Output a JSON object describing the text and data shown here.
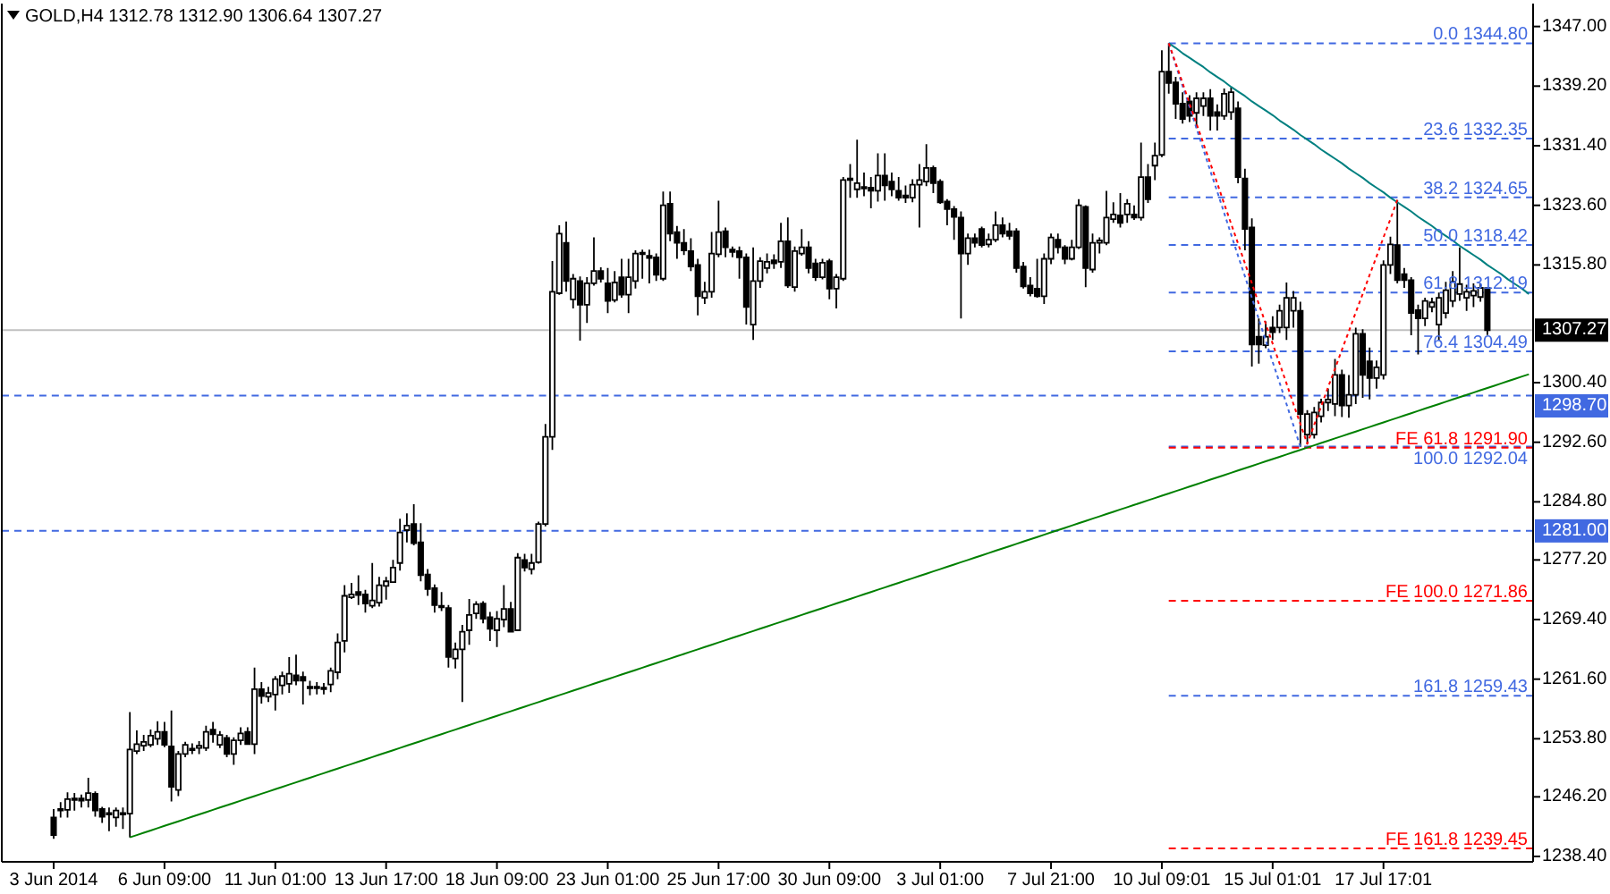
{
  "chart_data": {
    "type": "candlestick",
    "title": "GOLD,H4 1312.78 1312.90 1306.64 1307.27",
    "categories": [
      "3 Jun 2014",
      null,
      null,
      null,
      null,
      null,
      null,
      null,
      null,
      null,
      null,
      null,
      null,
      null,
      null,
      null,
      "6 Jun 09:00",
      null,
      null,
      null,
      null,
      null,
      null,
      null,
      null,
      null,
      null,
      null,
      null,
      null,
      null,
      null,
      "11 Jun 01:00",
      null,
      null,
      null,
      null,
      null,
      null,
      null,
      null,
      null,
      null,
      null,
      null,
      null,
      null,
      null,
      "13 Jun 17:00",
      null,
      null,
      null,
      null,
      null,
      null,
      null,
      null,
      null,
      null,
      null,
      null,
      null,
      null,
      null,
      "18 Jun 09:00",
      null,
      null,
      null,
      null,
      null,
      null,
      null,
      null,
      null,
      null,
      null,
      null,
      null,
      null,
      null,
      "23 Jun 01:00",
      null,
      null,
      null,
      null,
      null,
      null,
      null,
      null,
      null,
      null,
      null,
      null,
      null,
      null,
      null,
      "25 Jun 17:00",
      null,
      null,
      null,
      null,
      null,
      null,
      null,
      null,
      null,
      null,
      null,
      null,
      null,
      null,
      null,
      "30 Jun 09:00",
      null,
      null,
      null,
      null,
      null,
      null,
      null,
      null,
      null,
      null,
      null,
      null,
      null,
      null,
      null,
      "3 Jul 01:00",
      null,
      null,
      null,
      null,
      null,
      null,
      null,
      null,
      null,
      null,
      null,
      null,
      null,
      null,
      null,
      "7 Jul 21:00",
      null,
      null,
      null,
      null,
      null,
      null,
      null,
      null,
      null,
      null,
      null,
      null,
      null,
      null,
      null,
      "10 Jul 09:01",
      null,
      null,
      null,
      null,
      null,
      null,
      null,
      null,
      null,
      null,
      null,
      null,
      null,
      null,
      null,
      "15 Jul 01:01",
      null,
      null,
      null,
      null,
      null,
      null,
      null,
      null,
      null,
      null,
      null,
      null,
      null,
      null,
      null,
      "17 Jul 17:01",
      null,
      null,
      null,
      null,
      null,
      null,
      null,
      null,
      null,
      null,
      null,
      null,
      null,
      null,
      null,
      null,
      null,
      null,
      null,
      null,
      null
    ],
    "ohlc": [
      [
        1243.5,
        1244.6,
        1240.7,
        1241.2
      ],
      [
        1244.4,
        1245.5,
        1243.5,
        1244.6
      ],
      [
        1244.5,
        1246.8,
        1243.5,
        1245.9
      ],
      [
        1245.8,
        1246.7,
        1244.4,
        1246.0
      ],
      [
        1246.0,
        1246.5,
        1244.8,
        1245.7
      ],
      [
        1245.8,
        1248.7,
        1244.8,
        1246.7
      ],
      [
        1246.6,
        1246.9,
        1243.6,
        1244.4
      ],
      [
        1244.6,
        1244.9,
        1242.8,
        1243.6
      ],
      [
        1243.9,
        1244.8,
        1241.7,
        1244.1
      ],
      [
        1243.5,
        1244.8,
        1242.3,
        1244.4
      ],
      [
        1244.1,
        1244.8,
        1242.0,
        1243.9
      ],
      [
        1244.0,
        1257.3,
        1240.9,
        1252.4
      ],
      [
        1252.2,
        1254.9,
        1251.8,
        1253.1
      ],
      [
        1252.9,
        1254.3,
        1252.2,
        1253.4
      ],
      [
        1253.0,
        1255.0,
        1252.7,
        1254.2
      ],
      [
        1253.8,
        1256.1,
        1253.0,
        1254.7
      ],
      [
        1254.7,
        1256.0,
        1252.7,
        1253.0
      ],
      [
        1252.8,
        1257.5,
        1245.6,
        1247.5
      ],
      [
        1247.1,
        1252.2,
        1246.3,
        1251.8
      ],
      [
        1251.8,
        1253.4,
        1251.4,
        1253.0
      ],
      [
        1252.3,
        1253.2,
        1251.8,
        1252.5
      ],
      [
        1252.6,
        1253.5,
        1251.8,
        1252.9
      ],
      [
        1252.6,
        1255.5,
        1252.2,
        1254.7
      ],
      [
        1255.0,
        1256.0,
        1253.3,
        1254.4
      ],
      [
        1253.0,
        1254.8,
        1252.6,
        1254.3
      ],
      [
        1253.9,
        1254.3,
        1251.4,
        1251.8
      ],
      [
        1251.8,
        1254.0,
        1250.4,
        1253.6
      ],
      [
        1253.6,
        1255.3,
        1253.0,
        1254.5
      ],
      [
        1254.7,
        1255.3,
        1253.0,
        1253.1
      ],
      [
        1253.1,
        1263.1,
        1251.8,
        1260.3
      ],
      [
        1260.3,
        1261.2,
        1258.4,
        1259.4
      ],
      [
        1259.3,
        1260.6,
        1258.6,
        1259.8
      ],
      [
        1259.6,
        1262.0,
        1257.5,
        1261.6
      ],
      [
        1260.8,
        1262.6,
        1259.6,
        1262.0
      ],
      [
        1261.0,
        1264.5,
        1259.8,
        1262.3
      ],
      [
        1262.1,
        1264.8,
        1260.8,
        1261.4
      ],
      [
        1261.9,
        1262.6,
        1258.3,
        1261.4
      ],
      [
        1260.4,
        1261.4,
        1259.5,
        1260.6
      ],
      [
        1260.6,
        1261.2,
        1259.6,
        1260.4
      ],
      [
        1260.3,
        1261.1,
        1259.6,
        1260.5
      ],
      [
        1260.9,
        1263.1,
        1259.9,
        1262.7
      ],
      [
        1262.5,
        1267.6,
        1261.6,
        1266.4
      ],
      [
        1266.6,
        1273.9,
        1265.1,
        1272.5
      ],
      [
        1272.3,
        1274.2,
        1272.1,
        1272.7
      ],
      [
        1273.0,
        1275.2,
        1271.3,
        1272.6
      ],
      [
        1272.7,
        1273.3,
        1270.3,
        1271.5
      ],
      [
        1271.2,
        1276.8,
        1270.9,
        1271.9
      ],
      [
        1271.6,
        1275.0,
        1271.1,
        1273.9
      ],
      [
        1273.8,
        1275.0,
        1272.0,
        1274.4
      ],
      [
        1274.3,
        1277.2,
        1274.2,
        1276.2
      ],
      [
        1276.8,
        1282.6,
        1275.8,
        1280.8
      ],
      [
        1281.1,
        1283.3,
        1279.5,
        1281.7
      ],
      [
        1281.9,
        1284.5,
        1279.1,
        1279.4
      ],
      [
        1279.5,
        1282.0,
        1274.4,
        1275.2
      ],
      [
        1275.3,
        1276.0,
        1272.5,
        1273.4
      ],
      [
        1273.5,
        1274.0,
        1270.3,
        1271.3
      ],
      [
        1271.2,
        1273.0,
        1270.5,
        1271.0
      ],
      [
        1270.9,
        1271.3,
        1263.1,
        1264.5
      ],
      [
        1264.3,
        1266.4,
        1263.0,
        1265.5
      ],
      [
        1265.5,
        1268.7,
        1258.6,
        1267.8
      ],
      [
        1268.0,
        1272.1,
        1266.1,
        1270.0
      ],
      [
        1270.2,
        1271.8,
        1269.5,
        1271.4
      ],
      [
        1271.5,
        1271.8,
        1268.9,
        1269.5
      ],
      [
        1269.7,
        1270.4,
        1266.6,
        1268.2
      ],
      [
        1268.0,
        1270.5,
        1265.8,
        1269.5
      ],
      [
        1269.4,
        1273.9,
        1268.4,
        1270.8
      ],
      [
        1270.8,
        1271.7,
        1267.7,
        1267.8
      ],
      [
        1268.0,
        1278.1,
        1267.9,
        1277.5
      ],
      [
        1277.2,
        1278.0,
        1275.7,
        1276.2
      ],
      [
        1276.0,
        1278.0,
        1275.3,
        1276.8
      ],
      [
        1276.9,
        1282.2,
        1276.7,
        1281.9
      ],
      [
        1281.9,
        1295.0,
        1281.6,
        1293.3
      ],
      [
        1293.3,
        1316.3,
        1291.6,
        1312.3
      ],
      [
        1312.1,
        1321.0,
        1311.9,
        1319.9
      ],
      [
        1318.7,
        1321.5,
        1312.3,
        1313.7
      ],
      [
        1311.3,
        1314.6,
        1310.1,
        1314.0
      ],
      [
        1313.7,
        1314.3,
        1305.9,
        1310.6
      ],
      [
        1310.6,
        1314.2,
        1308.2,
        1313.4
      ],
      [
        1313.4,
        1319.4,
        1313.1,
        1315.0
      ],
      [
        1315.0,
        1315.5,
        1313.5,
        1314.0
      ],
      [
        1313.4,
        1315.4,
        1309.5,
        1311.1
      ],
      [
        1311.2,
        1315.0,
        1310.9,
        1313.5
      ],
      [
        1314.2,
        1316.6,
        1311.5,
        1311.9
      ],
      [
        1311.9,
        1316.6,
        1309.5,
        1314.2
      ],
      [
        1313.7,
        1317.7,
        1312.7,
        1317.3
      ],
      [
        1317.2,
        1317.8,
        1314.0,
        1317.4
      ],
      [
        1317.0,
        1317.8,
        1313.4,
        1316.7
      ],
      [
        1316.8,
        1317.3,
        1313.7,
        1314.5
      ],
      [
        1314.0,
        1325.4,
        1313.7,
        1323.6
      ],
      [
        1323.8,
        1325.4,
        1318.9,
        1319.9
      ],
      [
        1320.1,
        1320.9,
        1316.6,
        1318.7
      ],
      [
        1318.7,
        1320.5,
        1317.1,
        1317.7
      ],
      [
        1317.6,
        1319.3,
        1315.0,
        1315.6
      ],
      [
        1315.8,
        1316.6,
        1309.2,
        1311.7
      ],
      [
        1311.5,
        1313.6,
        1310.7,
        1312.3
      ],
      [
        1312.3,
        1320.1,
        1311.5,
        1317.3
      ],
      [
        1317.2,
        1324.2,
        1316.8,
        1320.1
      ],
      [
        1320.2,
        1320.7,
        1316.8,
        1318.1
      ],
      [
        1317.8,
        1318.2,
        1316.8,
        1317.5
      ],
      [
        1317.6,
        1318.2,
        1314.0,
        1316.8
      ],
      [
        1316.8,
        1317.3,
        1308.0,
        1310.3
      ],
      [
        1308.0,
        1318.1,
        1306.0,
        1313.7
      ],
      [
        1313.7,
        1316.8,
        1312.8,
        1316.3
      ],
      [
        1315.4,
        1317.3,
        1314.7,
        1316.2
      ],
      [
        1316.4,
        1317.2,
        1315.3,
        1316.0
      ],
      [
        1316.2,
        1321.3,
        1315.4,
        1318.9
      ],
      [
        1318.9,
        1322.0,
        1312.8,
        1313.1
      ],
      [
        1312.9,
        1318.2,
        1312.3,
        1317.6
      ],
      [
        1317.3,
        1320.5,
        1317.0,
        1318.1
      ],
      [
        1318.1,
        1318.9,
        1314.7,
        1315.4
      ],
      [
        1316.0,
        1316.6,
        1313.7,
        1314.2
      ],
      [
        1314.2,
        1316.6,
        1313.9,
        1316.1
      ],
      [
        1316.3,
        1316.6,
        1311.3,
        1312.7
      ],
      [
        1312.7,
        1314.6,
        1310.1,
        1314.2
      ],
      [
        1314.0,
        1327.3,
        1313.7,
        1326.9
      ],
      [
        1326.9,
        1329.0,
        1324.6,
        1327.1
      ],
      [
        1325.7,
        1332.2,
        1324.6,
        1326.5
      ],
      [
        1326.0,
        1327.9,
        1324.8,
        1325.8
      ],
      [
        1325.9,
        1327.3,
        1323.2,
        1325.5
      ],
      [
        1325.5,
        1330.4,
        1324.1,
        1327.5
      ],
      [
        1327.5,
        1330.4,
        1324.2,
        1326.2
      ],
      [
        1326.7,
        1327.9,
        1324.8,
        1325.7
      ],
      [
        1325.5,
        1327.3,
        1324.2,
        1324.6
      ],
      [
        1324.9,
        1326.2,
        1323.9,
        1324.6
      ],
      [
        1324.6,
        1327.0,
        1324.0,
        1326.3
      ],
      [
        1326.3,
        1329.0,
        1320.7,
        1326.9
      ],
      [
        1326.7,
        1331.6,
        1326.1,
        1328.5
      ],
      [
        1328.5,
        1328.8,
        1325.2,
        1326.5
      ],
      [
        1326.7,
        1327.0,
        1323.8,
        1324.0
      ],
      [
        1324.1,
        1324.4,
        1321.0,
        1323.1
      ],
      [
        1323.1,
        1323.5,
        1319.1,
        1322.1
      ],
      [
        1322.0,
        1322.8,
        1308.8,
        1317.3
      ],
      [
        1317.3,
        1319.9,
        1315.8,
        1319.3
      ],
      [
        1319.3,
        1319.9,
        1318.1,
        1318.7
      ],
      [
        1320.5,
        1320.8,
        1318.1,
        1318.4
      ],
      [
        1318.5,
        1319.9,
        1318.1,
        1319.1
      ],
      [
        1319.1,
        1322.8,
        1318.8,
        1321.0
      ],
      [
        1321.0,
        1322.0,
        1319.4,
        1319.9
      ],
      [
        1320.2,
        1321.3,
        1319.1,
        1319.6
      ],
      [
        1320.2,
        1320.6,
        1314.8,
        1315.4
      ],
      [
        1315.6,
        1316.2,
        1312.7,
        1313.0
      ],
      [
        1313.1,
        1314.2,
        1311.7,
        1312.1
      ],
      [
        1312.7,
        1316.6,
        1311.5,
        1311.7
      ],
      [
        1311.7,
        1317.3,
        1310.7,
        1316.6
      ],
      [
        1316.6,
        1319.9,
        1315.9,
        1319.4
      ],
      [
        1319.1,
        1319.9,
        1317.3,
        1318.1
      ],
      [
        1318.1,
        1318.4,
        1315.9,
        1316.6
      ],
      [
        1316.6,
        1319.1,
        1316.4,
        1318.1
      ],
      [
        1318.1,
        1324.4,
        1317.9,
        1323.6
      ],
      [
        1323.4,
        1323.6,
        1312.9,
        1315.4
      ],
      [
        1315.2,
        1319.9,
        1314.8,
        1318.7
      ],
      [
        1318.7,
        1319.4,
        1317.3,
        1319.0
      ],
      [
        1318.7,
        1325.5,
        1318.4,
        1322.0
      ],
      [
        1321.8,
        1324.0,
        1321.3,
        1322.4
      ],
      [
        1322.3,
        1325.2,
        1320.7,
        1321.3
      ],
      [
        1322.4,
        1324.4,
        1321.3,
        1323.8
      ],
      [
        1322.4,
        1323.6,
        1321.7,
        1322.0
      ],
      [
        1322.0,
        1331.8,
        1321.6,
        1327.3
      ],
      [
        1327.3,
        1329.0,
        1323.9,
        1324.4
      ],
      [
        1328.8,
        1331.8,
        1326.9,
        1330.1
      ],
      [
        1330.2,
        1343.9,
        1329.9,
        1341.1
      ],
      [
        1341.1,
        1344.8,
        1338.2,
        1339.6
      ],
      [
        1339.7,
        1340.4,
        1334.9,
        1336.9
      ],
      [
        1336.9,
        1338.4,
        1334.3,
        1334.9
      ],
      [
        1337.2,
        1338.0,
        1334.5,
        1335.3
      ],
      [
        1335.7,
        1338.4,
        1333.7,
        1337.6
      ],
      [
        1336.6,
        1338.4,
        1335.3,
        1337.6
      ],
      [
        1337.6,
        1338.8,
        1333.4,
        1335.3
      ],
      [
        1335.8,
        1336.8,
        1333.4,
        1335.3
      ],
      [
        1335.3,
        1338.9,
        1334.8,
        1338.2
      ],
      [
        1335.8,
        1339.0,
        1334.8,
        1338.4
      ],
      [
        1336.3,
        1337.2,
        1326.5,
        1327.3
      ],
      [
        1327.1,
        1328.4,
        1317.7,
        1320.5
      ],
      [
        1320.7,
        1321.9,
        1302.5,
        1305.4
      ],
      [
        1306.4,
        1308.8,
        1302.9,
        1305.4
      ],
      [
        1305.3,
        1308.4,
        1304.9,
        1306.4
      ],
      [
        1307.6,
        1309.1,
        1306.0,
        1307.0
      ],
      [
        1307.6,
        1310.6,
        1306.9,
        1309.8
      ],
      [
        1307.6,
        1313.5,
        1306.0,
        1311.5
      ],
      [
        1309.8,
        1312.4,
        1307.6,
        1311.5
      ],
      [
        1309.8,
        1311.0,
        1292.0,
        1296.3
      ],
      [
        1293.6,
        1296.8,
        1292.4,
        1296.3
      ],
      [
        1293.6,
        1297.2,
        1293.1,
        1296.5
      ],
      [
        1296.0,
        1298.3,
        1295.2,
        1297.8
      ],
      [
        1297.8,
        1299.6,
        1296.7,
        1298.2
      ],
      [
        1297.6,
        1303.5,
        1296.0,
        1301.4
      ],
      [
        1301.4,
        1302.1,
        1295.9,
        1297.4
      ],
      [
        1297.4,
        1301.4,
        1295.8,
        1298.8
      ],
      [
        1298.8,
        1307.6,
        1297.6,
        1306.8
      ],
      [
        1306.8,
        1307.4,
        1298.4,
        1301.4
      ],
      [
        1303.2,
        1305.0,
        1298.2,
        1301.0
      ],
      [
        1301.0,
        1303.3,
        1299.6,
        1302.4
      ],
      [
        1301.4,
        1316.4,
        1300.8,
        1315.8
      ],
      [
        1315.8,
        1319.5,
        1314.6,
        1318.5
      ],
      [
        1318.4,
        1324.3,
        1313.4,
        1313.8
      ],
      [
        1314.6,
        1315.4,
        1312.8,
        1313.8
      ],
      [
        1313.8,
        1314.2,
        1306.6,
        1309.5
      ],
      [
        1309.9,
        1310.6,
        1304.1,
        1308.8
      ],
      [
        1308.8,
        1311.5,
        1307.8,
        1311.1
      ],
      [
        1310.3,
        1311.5,
        1309.6,
        1310.9
      ],
      [
        1308.0,
        1312.2,
        1305.9,
        1311.5
      ],
      [
        1309.5,
        1313.6,
        1308.8,
        1312.5
      ],
      [
        1311.1,
        1315.0,
        1310.3,
        1313.6
      ],
      [
        1312.0,
        1318.1,
        1311.1,
        1313.3
      ],
      [
        1311.5,
        1313.2,
        1309.8,
        1312.3
      ],
      [
        1311.8,
        1313.4,
        1310.3,
        1312.4
      ],
      [
        1311.6,
        1313.4,
        1311.0,
        1312.8
      ],
      [
        1312.78,
        1312.9,
        1306.64,
        1307.27
      ],
      null,
      null,
      null,
      null,
      null,
      null
    ],
    "series": [
      {
        "type": "line",
        "color": "#008000",
        "line_style": "solid",
        "values": [
          null,
          null,
          null,
          null,
          null,
          null,
          null,
          null,
          null,
          null,
          null,
          1240.9,
          1241.2,
          1241.5,
          1241.8,
          1242.1,
          1242.4,
          1242.7,
          1243.0,
          1243.3,
          1243.6,
          1243.9,
          1244.2,
          1244.5,
          1244.8,
          1245.1,
          1245.4,
          1245.7,
          1246.0,
          1246.3,
          1246.6,
          1246.9,
          1247.2,
          1247.5,
          1247.8,
          1248.1,
          1248.4,
          1248.7,
          1249.0,
          1249.3,
          1249.6,
          1249.9,
          1250.2,
          1250.5,
          1250.8,
          1251.1,
          1251.4,
          1251.7,
          1252.0,
          1252.3,
          1252.6,
          1252.9,
          1253.2,
          1253.5,
          1253.8,
          1254.1,
          1254.4,
          1254.7,
          1255.0,
          1255.3,
          1255.6,
          1255.9,
          1256.2,
          1256.5,
          1256.8,
          1257.1,
          1257.4,
          1257.7,
          1258.0,
          1258.3,
          1258.6,
          1258.9,
          1259.2,
          1259.5,
          1259.8,
          1260.1,
          1260.4,
          1260.7,
          1261.0,
          1261.3,
          1261.6,
          1261.9,
          1262.2,
          1262.5,
          1262.8,
          1263.1,
          1263.4,
          1263.7,
          1264.0,
          1264.3,
          1264.6,
          1264.9,
          1265.2,
          1265.5,
          1265.8,
          1266.1,
          1266.4,
          1266.7,
          1267.0,
          1267.3,
          1267.6,
          1267.9,
          1268.2,
          1268.5,
          1268.8,
          1269.1,
          1269.4,
          1269.7,
          1270.0,
          1270.3,
          1270.6,
          1270.9,
          1271.2,
          1271.5,
          1271.8,
          1272.1,
          1272.4,
          1272.7,
          1273.0,
          1273.3,
          1273.6,
          1273.9,
          1274.2,
          1274.5,
          1274.8,
          1275.1,
          1275.4,
          1275.7,
          1276.0,
          1276.3,
          1276.6,
          1276.9,
          1277.2,
          1277.5,
          1277.8,
          1278.1,
          1278.4,
          1278.7,
          1279.0,
          1279.3,
          1279.6,
          1279.9,
          1280.2,
          1280.5,
          1280.8,
          1281.1,
          1281.4,
          1281.7,
          1282.0,
          1282.3,
          1282.6,
          1282.9,
          1283.2,
          1283.5,
          1283.8,
          1284.1,
          1284.4,
          1284.7,
          1285.0,
          1285.3,
          1285.6,
          1285.9,
          1286.2,
          1286.5,
          1286.8,
          1287.1,
          1287.4,
          1287.7,
          1288.0,
          1288.3,
          1288.6,
          1288.9,
          1289.2,
          1289.5,
          1289.8,
          1290.1,
          1290.4,
          1290.7,
          1291.0,
          1291.3,
          1291.6,
          1291.9,
          1292.2,
          1292.5,
          1292.8,
          1293.1,
          1293.4,
          1293.7,
          1294.0,
          1294.3,
          1294.6,
          1294.9,
          1295.2,
          1295.5,
          1295.8,
          1296.1,
          1296.4,
          1296.7,
          1297.0,
          1297.3,
          1297.6,
          1297.9,
          1298.2,
          1298.5,
          1298.8,
          1299.1,
          1299.4,
          1299.7,
          1300.0,
          1300.3,
          1300.6,
          1300.9,
          1301.2,
          1301.5
        ]
      },
      {
        "type": "line",
        "color": "#008080",
        "line_style": "solid",
        "values": [
          null,
          null,
          null,
          null,
          null,
          null,
          null,
          null,
          null,
          null,
          null,
          null,
          null,
          null,
          null,
          null,
          null,
          null,
          null,
          null,
          null,
          null,
          null,
          null,
          null,
          null,
          null,
          null,
          null,
          null,
          null,
          null,
          null,
          null,
          null,
          null,
          null,
          null,
          null,
          null,
          null,
          null,
          null,
          null,
          null,
          null,
          null,
          null,
          null,
          null,
          null,
          null,
          null,
          null,
          null,
          null,
          null,
          null,
          null,
          null,
          null,
          null,
          null,
          null,
          null,
          null,
          null,
          null,
          null,
          null,
          null,
          null,
          null,
          null,
          null,
          null,
          null,
          null,
          null,
          null,
          null,
          null,
          null,
          null,
          null,
          null,
          null,
          null,
          null,
          null,
          null,
          null,
          null,
          null,
          null,
          null,
          null,
          null,
          null,
          null,
          null,
          null,
          null,
          null,
          null,
          null,
          null,
          null,
          null,
          null,
          null,
          null,
          null,
          null,
          null,
          null,
          null,
          null,
          null,
          null,
          null,
          null,
          null,
          null,
          null,
          null,
          null,
          null,
          null,
          null,
          null,
          null,
          null,
          null,
          null,
          null,
          null,
          null,
          null,
          null,
          null,
          null,
          null,
          null,
          null,
          null,
          null,
          null,
          null,
          null,
          null,
          null,
          null,
          null,
          null,
          null,
          null,
          null,
          null,
          null,
          null,
          1344.8,
          1344.2,
          1343.5,
          1342.9,
          1342.3,
          1341.7,
          1341.0,
          1340.4,
          1339.8,
          1339.1,
          1338.5,
          1337.9,
          1337.2,
          1336.6,
          1336.0,
          1335.4,
          1334.7,
          1334.1,
          1333.5,
          1332.8,
          1332.2,
          1331.6,
          1330.9,
          1330.3,
          1329.7,
          1329.1,
          1328.4,
          1327.8,
          1327.2,
          1326.5,
          1325.9,
          1325.3,
          1324.6,
          1324.0,
          1323.4,
          1322.8,
          1322.1,
          1321.5,
          1320.9,
          1320.2,
          1319.6,
          1319.0,
          1318.3,
          1317.7,
          1317.1,
          1316.5,
          1315.8,
          1315.2,
          1314.6,
          1313.9,
          1313.3,
          1312.7,
          1312.0
        ]
      },
      {
        "type": "line",
        "color": "#4169e1",
        "line_style": "dotted",
        "values": [
          null,
          null,
          null,
          null,
          null,
          null,
          null,
          null,
          null,
          null,
          null,
          null,
          null,
          null,
          null,
          null,
          null,
          null,
          null,
          null,
          null,
          null,
          null,
          null,
          null,
          null,
          null,
          null,
          null,
          null,
          null,
          null,
          null,
          null,
          null,
          null,
          null,
          null,
          null,
          null,
          null,
          null,
          null,
          null,
          null,
          null,
          null,
          null,
          null,
          null,
          null,
          null,
          null,
          null,
          null,
          null,
          null,
          null,
          null,
          null,
          null,
          null,
          null,
          null,
          null,
          null,
          null,
          null,
          null,
          null,
          null,
          null,
          null,
          null,
          null,
          null,
          null,
          null,
          null,
          null,
          null,
          null,
          null,
          null,
          null,
          null,
          null,
          null,
          null,
          null,
          null,
          null,
          null,
          null,
          null,
          null,
          null,
          null,
          null,
          null,
          null,
          null,
          null,
          null,
          null,
          null,
          null,
          null,
          null,
          null,
          null,
          null,
          null,
          null,
          null,
          null,
          null,
          null,
          null,
          null,
          null,
          null,
          null,
          null,
          null,
          null,
          null,
          null,
          null,
          null,
          null,
          null,
          null,
          null,
          null,
          null,
          null,
          null,
          null,
          null,
          null,
          null,
          null,
          null,
          null,
          null,
          null,
          null,
          null,
          null,
          null,
          null,
          null,
          null,
          null,
          null,
          null,
          null,
          null,
          null,
          null,
          1344.8,
          1342.0,
          1339.2,
          1336.5,
          1333.7,
          1330.9,
          1328.1,
          1325.4,
          1322.6,
          1319.8,
          1317.0,
          1314.3,
          1311.5,
          1308.7,
          1305.9,
          1303.1,
          1300.4,
          1297.6,
          1294.8,
          1292.0,
          null,
          null,
          null,
          null,
          null,
          null,
          null,
          null,
          null,
          null,
          null,
          null,
          null,
          null,
          null,
          null,
          null,
          null,
          null,
          null,
          null,
          null,
          null,
          null,
          null,
          null,
          null,
          null,
          null,
          null,
          null,
          null,
          null
        ]
      },
      {
        "type": "line",
        "color": "#ff0000",
        "line_style": "dotted",
        "values": [
          null,
          null,
          null,
          null,
          null,
          null,
          null,
          null,
          null,
          null,
          null,
          null,
          null,
          null,
          null,
          null,
          null,
          null,
          null,
          null,
          null,
          null,
          null,
          null,
          null,
          null,
          null,
          null,
          null,
          null,
          null,
          null,
          null,
          null,
          null,
          null,
          null,
          null,
          null,
          null,
          null,
          null,
          null,
          null,
          null,
          null,
          null,
          null,
          null,
          null,
          null,
          null,
          null,
          null,
          null,
          null,
          null,
          null,
          null,
          null,
          null,
          null,
          null,
          null,
          null,
          null,
          null,
          null,
          null,
          null,
          null,
          null,
          null,
          null,
          null,
          null,
          null,
          null,
          null,
          null,
          null,
          null,
          null,
          null,
          null,
          null,
          null,
          null,
          null,
          null,
          null,
          null,
          null,
          null,
          null,
          null,
          null,
          null,
          null,
          null,
          null,
          null,
          null,
          null,
          null,
          null,
          null,
          null,
          null,
          null,
          null,
          null,
          null,
          null,
          null,
          null,
          null,
          null,
          null,
          null,
          null,
          null,
          null,
          null,
          null,
          null,
          null,
          null,
          null,
          null,
          null,
          null,
          null,
          null,
          null,
          null,
          null,
          null,
          null,
          null,
          null,
          null,
          null,
          null,
          null,
          null,
          null,
          null,
          null,
          null,
          null,
          null,
          null,
          null,
          null,
          null,
          null,
          null,
          null,
          null,
          null,
          1344.8,
          1342.2,
          1339.6,
          1336.9,
          1334.3,
          1331.7,
          1329.1,
          1326.5,
          1323.8,
          1321.2,
          1318.6,
          1316.0,
          1313.4,
          1310.7,
          1308.1,
          1305.5,
          1302.9,
          1300.3,
          1297.6,
          1295.0,
          1292.4,
          1294.9,
          1297.3,
          1299.8,
          1302.2,
          1304.7,
          1307.1,
          1309.6,
          1312.0,
          1314.5,
          1316.9,
          1319.4,
          1321.8,
          1324.3,
          null,
          null,
          null,
          null,
          null,
          null,
          null,
          null,
          null,
          null,
          null,
          null,
          null,
          null,
          null,
          null,
          null,
          null,
          null
        ]
      }
    ],
    "ylim": [
      1237.7,
      1350
    ],
    "yticks": [
      {
        "value": 1347,
        "label": "1347.00"
      },
      {
        "value": 1339.2,
        "label": "1339.20"
      },
      {
        "value": 1331.4,
        "label": "1331.40"
      },
      {
        "value": 1323.6,
        "label": "1323.60"
      },
      {
        "value": 1315.8,
        "label": "1315.80"
      },
      {
        "value": 1300.4,
        "label": "1300.40"
      },
      {
        "value": 1292.6,
        "label": "1292.60"
      },
      {
        "value": 1284.8,
        "label": "1284.80"
      },
      {
        "value": 1277.2,
        "label": "1277.20"
      },
      {
        "value": 1269.4,
        "label": "1269.40"
      },
      {
        "value": 1261.6,
        "label": "1261.60"
      },
      {
        "value": 1253.8,
        "label": "1253.80"
      },
      {
        "value": 1246.2,
        "label": "1246.20"
      },
      {
        "value": 1238.4,
        "label": "1238.40"
      }
    ],
    "ref_lines": [
      {
        "axis": "y",
        "value": 1307.27,
        "label": "1307.27",
        "color": "#c0c0c0",
        "line_style": "solid"
      },
      {
        "axis": "y",
        "value": 1298.7,
        "label": "1298.70",
        "color": "#4169e1",
        "line_style": "dashed"
      },
      {
        "axis": "y",
        "value": 1281,
        "label": "1281.00",
        "color": "#4169e1",
        "line_style": "dashed"
      },
      {
        "axis": "y",
        "value": 1344.8,
        "color": "#4169e1",
        "line_style": "dashed"
      },
      {
        "axis": "y",
        "value": 1332.35,
        "color": "#4169e1",
        "line_style": "dashed"
      },
      {
        "axis": "y",
        "value": 1324.65,
        "color": "#4169e1",
        "line_style": "dashed"
      },
      {
        "axis": "y",
        "value": 1318.42,
        "color": "#4169e1",
        "line_style": "dashed"
      },
      {
        "axis": "y",
        "value": 1312.19,
        "color": "#4169e1",
        "line_style": "dashed"
      },
      {
        "axis": "y",
        "value": 1304.49,
        "color": "#4169e1",
        "line_style": "dashed"
      },
      {
        "axis": "y",
        "value": 1292.04,
        "color": "#4169e1",
        "line_style": "dashed"
      },
      {
        "axis": "y",
        "value": 1259.43,
        "color": "#4169e1",
        "line_style": "dashed"
      },
      {
        "axis": "y",
        "value": 1291.9,
        "color": "#ff0000",
        "line_style": "dashed"
      },
      {
        "axis": "y",
        "value": 1271.86,
        "color": "#ff0000",
        "line_style": "dashed"
      },
      {
        "axis": "y",
        "value": 1239.45,
        "color": "#ff0000",
        "line_style": "dashed"
      }
    ],
    "annotations": [
      {
        "text": "0.0 1344.80",
        "y": 1344.8
      },
      {
        "text": "23.6 1332.35",
        "y": 1332.35
      },
      {
        "text": "38.2 1324.65",
        "y": 1324.65
      },
      {
        "text": "50.0 1318.42",
        "y": 1318.42
      },
      {
        "text": "61.8 1312.19",
        "y": 1312.19
      },
      {
        "text": "76.4 1304.49",
        "y": 1304.49
      },
      {
        "text": "FE 61.8 1291.90",
        "y": 1291.9
      },
      {
        "text": "100.0 1292.04",
        "y": 1292.04
      },
      {
        "text": "FE 100.0 1271.86",
        "y": 1271.86
      },
      {
        "text": "161.8 1259.43",
        "y": 1259.43
      },
      {
        "text": "FE 161.8 1239.45",
        "y": 1239.45
      }
    ]
  }
}
